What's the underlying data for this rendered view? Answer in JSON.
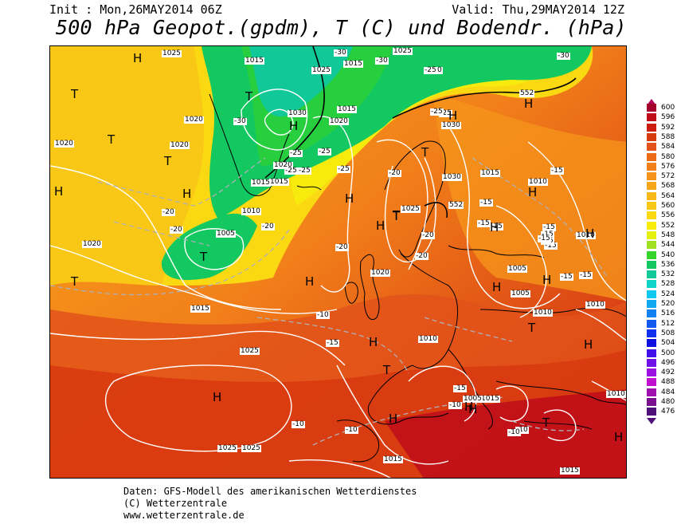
{
  "header": {
    "init": "Init : Mon,26MAY2014 06Z",
    "valid": "Valid: Thu,29MAY2014 12Z",
    "title": "500 hPa Geopot.(gpdm), T (C) und Bodendr. (hPa)"
  },
  "map": {
    "geopotential_labels": [
      "552",
      "552"
    ],
    "pressure_labels": [
      "1025",
      "1015",
      "1015",
      "1020",
      "1020",
      "1020",
      "1015",
      "1025",
      "1030",
      "1020",
      "1015",
      "1010",
      "1005",
      "1020",
      "1015",
      "1020",
      "1025",
      "1030",
      "1025",
      "1015",
      "1010",
      "1010",
      "1005",
      "1020",
      "1015",
      "1025",
      "1025",
      "1005",
      "1015",
      "1005",
      "1010",
      "1010",
      "1010",
      "1015",
      "1010",
      "1025",
      "1015",
      "1030"
    ],
    "temperature_labels": [
      "-30",
      "-30",
      "-30",
      "-25",
      "-30",
      "-30",
      "-25",
      "-25",
      "-25",
      "-25",
      "-25",
      "-20",
      "-20",
      "-20",
      "-20",
      "-20",
      "-20",
      "-25",
      "-25",
      "-15",
      "-15",
      "-15",
      "-15",
      "-15",
      "-15",
      "-15",
      "-15",
      "-15",
      "-15",
      "-15",
      "-15",
      "-10",
      "-10",
      "-10",
      "-10",
      "-10",
      "-10",
      "-20",
      "-15"
    ],
    "high_markers": [
      "H",
      "H",
      "H",
      "H",
      "H",
      "H",
      "H",
      "H",
      "H",
      "H",
      "H",
      "H",
      "H",
      "H",
      "H",
      "H",
      "H",
      "H",
      "H",
      "H",
      "H"
    ],
    "low_markers": [
      "T",
      "T",
      "T",
      "T",
      "T",
      "T",
      "T",
      "T",
      "T",
      "T",
      "T",
      "T"
    ]
  },
  "legend": {
    "values": [
      "600",
      "596",
      "592",
      "588",
      "584",
      "580",
      "576",
      "572",
      "568",
      "564",
      "560",
      "556",
      "552",
      "548",
      "544",
      "540",
      "536",
      "532",
      "528",
      "524",
      "520",
      "516",
      "512",
      "508",
      "504",
      "500",
      "496",
      "492",
      "488",
      "484",
      "480",
      "476"
    ],
    "colors": [
      "#a5002d",
      "#bf0e1a",
      "#cc1d10",
      "#d83a10",
      "#e2521a",
      "#eb6a15",
      "#f2801a",
      "#f5931a",
      "#f7a61a",
      "#f8b818",
      "#f9c816",
      "#fad912",
      "#f7eb0e",
      "#e3f010",
      "#9fe020",
      "#35d42a",
      "#13c860",
      "#10c898",
      "#10d4c8",
      "#10c8f0",
      "#10a8f0",
      "#1080f0",
      "#1058f0",
      "#1030f0",
      "#1010e0",
      "#4010e8",
      "#7010e8",
      "#9a10e0",
      "#c010d0",
      "#a010b0",
      "#7a1090",
      "#50107a"
    ]
  },
  "footer": {
    "line1": "Daten: GFS-Modell des amerikanischen Wetterdienstes",
    "line2": "(C) Wetterzentrale",
    "line3": "www.wetterzentrale.de"
  }
}
